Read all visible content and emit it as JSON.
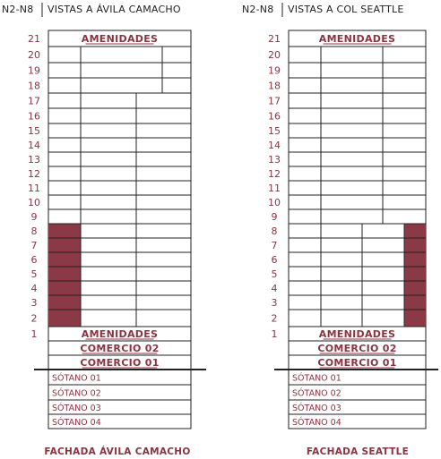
{
  "colors": {
    "accent": "#8a3440",
    "line": "#222222",
    "filled": "#8b3a45"
  },
  "left": {
    "code": "N2-N8",
    "view": "VISTAS A ÁVILA CAMACHO",
    "caption": "FACHADA ÁVILA CAMACHO",
    "floors": [
      {
        "num": "21",
        "label": "AMENIDADES",
        "kind": "label"
      },
      {
        "num": "20",
        "kind": "split3-top"
      },
      {
        "num": "19",
        "kind": "split3-top"
      },
      {
        "num": "18",
        "kind": "split3-top"
      },
      {
        "num": "17",
        "kind": "split3-mid"
      },
      {
        "num": "16",
        "kind": "split3-mid"
      },
      {
        "num": "15",
        "kind": "split3-mid"
      },
      {
        "num": "14",
        "kind": "split3-mid"
      },
      {
        "num": "13",
        "kind": "split3-mid"
      },
      {
        "num": "12",
        "kind": "split3-mid"
      },
      {
        "num": "11",
        "kind": "split3-mid"
      },
      {
        "num": "10",
        "kind": "split3-mid"
      },
      {
        "num": "9",
        "kind": "split3-mid"
      },
      {
        "num": "8",
        "kind": "split3-highlight"
      },
      {
        "num": "7",
        "kind": "split3-highlight"
      },
      {
        "num": "6",
        "kind": "split3-highlight"
      },
      {
        "num": "5",
        "kind": "split3-highlight"
      },
      {
        "num": "4",
        "kind": "split3-highlight"
      },
      {
        "num": "3",
        "kind": "split3-highlight"
      },
      {
        "num": "2",
        "kind": "split3-highlight"
      },
      {
        "num": "1",
        "label": "AMENIDADES",
        "kind": "label"
      },
      {
        "num": "",
        "label": "COMERCIO 02",
        "kind": "label"
      },
      {
        "num": "",
        "label": "COMERCIO 01",
        "kind": "label"
      }
    ],
    "basements": [
      "SÓTANO 01",
      "SÓTANO 02",
      "SÓTANO 03",
      "SÓTANO 04"
    ],
    "highlighted_floors": [
      "8",
      "7",
      "6",
      "5",
      "4",
      "3",
      "2"
    ],
    "highlight_side": "left"
  },
  "right": {
    "code": "N2-N8",
    "view": "VISTAS A COL SEATTLE",
    "caption": "FACHADA SEATTLE",
    "floors": [
      {
        "num": "21",
        "label": "AMENIDADES",
        "kind": "label"
      },
      {
        "num": "20",
        "kind": "split3"
      },
      {
        "num": "19",
        "kind": "split3"
      },
      {
        "num": "18",
        "kind": "split3"
      },
      {
        "num": "17",
        "kind": "split3"
      },
      {
        "num": "16",
        "kind": "split3"
      },
      {
        "num": "15",
        "kind": "split3"
      },
      {
        "num": "14",
        "kind": "split3"
      },
      {
        "num": "13",
        "kind": "split3"
      },
      {
        "num": "12",
        "kind": "split3"
      },
      {
        "num": "11",
        "kind": "split3"
      },
      {
        "num": "10",
        "kind": "split3"
      },
      {
        "num": "9",
        "kind": "split3"
      },
      {
        "num": "8",
        "kind": "split3-highlight"
      },
      {
        "num": "7",
        "kind": "split3-highlight"
      },
      {
        "num": "6",
        "kind": "split3-highlight"
      },
      {
        "num": "5",
        "kind": "split3-highlight"
      },
      {
        "num": "4",
        "kind": "split3-highlight"
      },
      {
        "num": "3",
        "kind": "split3-highlight"
      },
      {
        "num": "2",
        "kind": "split3-highlight"
      },
      {
        "num": "1",
        "label": "AMENIDADES",
        "kind": "label"
      },
      {
        "num": "",
        "label": "COMERCIO 02",
        "kind": "label"
      },
      {
        "num": "",
        "label": "COMERCIO 01",
        "kind": "label"
      }
    ],
    "basements": [
      "SÓTANO 01",
      "SÓTANO 02",
      "SÓTANO 03",
      "SÓTANO 04"
    ],
    "highlighted_floors": [
      "8",
      "7",
      "6",
      "5",
      "4",
      "3",
      "2"
    ],
    "highlight_side": "right"
  }
}
